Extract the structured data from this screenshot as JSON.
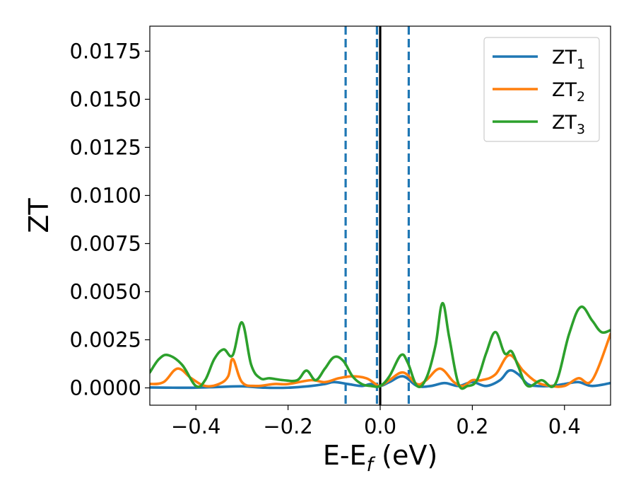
{
  "chart_data": {
    "type": "line",
    "xlabel": {
      "main": "E-E",
      "sub": "f",
      "unit": " (eV)"
    },
    "ylabel": "ZT",
    "xlim": [
      -0.5,
      0.5
    ],
    "ylim": [
      -0.0009,
      0.0188
    ],
    "xticks": [
      -0.4,
      -0.2,
      0.0,
      0.2,
      0.4
    ],
    "xtick_labels": [
      "−0.4",
      "−0.2",
      "0.0",
      "0.2",
      "0.4"
    ],
    "yticks": [
      0.0,
      0.0025,
      0.005,
      0.0075,
      0.01,
      0.0125,
      0.015,
      0.0175
    ],
    "ytick_labels": [
      "0.0000",
      "0.0025",
      "0.0050",
      "0.0075",
      "0.0100",
      "0.0125",
      "0.0150",
      "0.0175"
    ],
    "grid": false,
    "legend_position": "top-right",
    "vlines": [
      {
        "x": -0.075,
        "style": "dashed",
        "color": "#1f77b4"
      },
      {
        "x": -0.007,
        "style": "dashed",
        "color": "#1f77b4"
      },
      {
        "x": 0.0,
        "style": "solid",
        "color": "#000000"
      },
      {
        "x": 0.062,
        "style": "dashed",
        "color": "#1f77b4"
      }
    ],
    "series": [
      {
        "name": "ZT",
        "sub": "1",
        "color": "#1f77b4",
        "x": [
          -0.5,
          -0.45,
          -0.4,
          -0.35,
          -0.3,
          -0.25,
          -0.2,
          -0.15,
          -0.12,
          -0.1,
          -0.07,
          -0.04,
          -0.02,
          0.0,
          0.02,
          0.05,
          0.08,
          0.11,
          0.14,
          0.17,
          0.2,
          0.23,
          0.26,
          0.28,
          0.3,
          0.32,
          0.34,
          0.37,
          0.4,
          0.43,
          0.46,
          0.5
        ],
        "y": [
          2e-05,
          1e-05,
          1e-05,
          5e-05,
          8e-05,
          1e-05,
          1e-05,
          0.0001,
          0.0002,
          0.0003,
          0.0002,
          0.0001,
          0.0002,
          0.0001,
          0.0003,
          0.0006,
          0.0001,
          0.0001,
          0.00025,
          0.0001,
          0.0003,
          0.0001,
          0.0004,
          0.0009,
          0.0007,
          0.0002,
          0.0001,
          0.0001,
          0.0002,
          0.0003,
          0.0001,
          0.00025
        ]
      },
      {
        "name": "ZT",
        "sub": "2",
        "color": "#ff7f0e",
        "x": [
          -0.5,
          -0.47,
          -0.44,
          -0.41,
          -0.38,
          -0.35,
          -0.33,
          -0.32,
          -0.3,
          -0.27,
          -0.23,
          -0.2,
          -0.15,
          -0.12,
          -0.09,
          -0.06,
          -0.03,
          -0.01,
          0.0,
          0.02,
          0.05,
          0.08,
          0.1,
          0.13,
          0.16,
          0.18,
          0.2,
          0.22,
          0.25,
          0.28,
          0.31,
          0.34,
          0.37,
          0.4,
          0.43,
          0.46,
          0.5
        ],
        "y": [
          0.0002,
          0.0003,
          0.001,
          0.0005,
          0.0001,
          0.0002,
          0.0006,
          0.0015,
          0.0003,
          0.0001,
          0.0002,
          0.0002,
          0.0004,
          0.0003,
          0.0005,
          0.0006,
          0.0005,
          0.0002,
          0.0001,
          0.0004,
          0.0008,
          0.0002,
          0.0004,
          0.001,
          0.0003,
          0.0001,
          0.0004,
          0.0004,
          0.0007,
          0.0017,
          0.0009,
          0.0003,
          0.0001,
          0.0001,
          0.0005,
          0.0004,
          0.0028
        ]
      },
      {
        "name": "ZT",
        "sub": "3",
        "color": "#2ca02c",
        "x": [
          -0.5,
          -0.48,
          -0.46,
          -0.43,
          -0.4,
          -0.38,
          -0.36,
          -0.34,
          -0.32,
          -0.3,
          -0.28,
          -0.26,
          -0.24,
          -0.21,
          -0.18,
          -0.16,
          -0.14,
          -0.12,
          -0.1,
          -0.08,
          -0.06,
          -0.04,
          -0.02,
          0.0,
          0.02,
          0.045,
          0.06,
          0.08,
          0.1,
          0.12,
          0.135,
          0.15,
          0.17,
          0.19,
          0.21,
          0.23,
          0.25,
          0.27,
          0.285,
          0.3,
          0.32,
          0.35,
          0.38,
          0.41,
          0.435,
          0.46,
          0.48,
          0.5
        ],
        "y": [
          0.0008,
          0.0015,
          0.0017,
          0.0012,
          0.0001,
          0.0004,
          0.0015,
          0.002,
          0.0017,
          0.0034,
          0.0012,
          0.0005,
          0.0005,
          0.0004,
          0.0004,
          0.0009,
          0.0004,
          0.001,
          0.0016,
          0.0014,
          0.0006,
          0.0002,
          0.0001,
          0.0001,
          0.0006,
          0.0017,
          0.0013,
          0.0001,
          0.0005,
          0.0022,
          0.0044,
          0.0026,
          0.0002,
          0.0001,
          0.0004,
          0.0018,
          0.0029,
          0.0018,
          0.0019,
          0.0011,
          0.0001,
          0.0004,
          0.0002,
          0.0028,
          0.0042,
          0.0035,
          0.0029,
          0.003
        ]
      }
    ]
  }
}
